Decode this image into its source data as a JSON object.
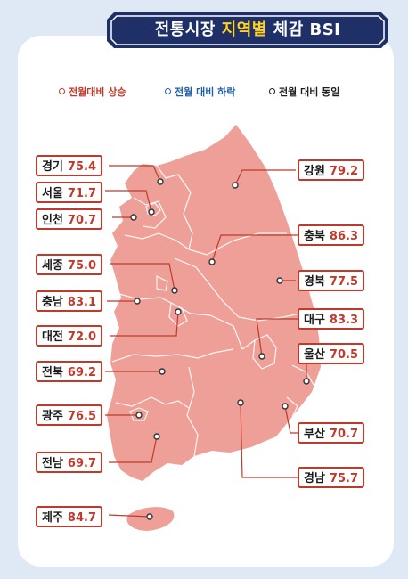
{
  "title": {
    "prefix": "전통시장",
    "highlight": "지역별",
    "suffix": "체감 BSI"
  },
  "legend": [
    {
      "label": "전월대비 상승",
      "color": "#c0392b"
    },
    {
      "label": "전월 대비 하락",
      "color": "#1f5fa8"
    },
    {
      "label": "전월 대비 동일",
      "color": "#1b1b1b"
    }
  ],
  "colors": {
    "map_fill": "#eea098",
    "border": "#c0392b",
    "title_bg": "#1f2f68",
    "highlight": "#ffd21e"
  },
  "regions": {
    "gyeonggi": {
      "name": "경기",
      "value": "75.4"
    },
    "seoul": {
      "name": "서울",
      "value": "71.7"
    },
    "incheon": {
      "name": "인천",
      "value": "70.7"
    },
    "sejong": {
      "name": "세종",
      "value": "75.0"
    },
    "chungnam": {
      "name": "충남",
      "value": "83.1"
    },
    "daejeon": {
      "name": "대전",
      "value": "72.0"
    },
    "jeonbuk": {
      "name": "전북",
      "value": "69.2"
    },
    "gwangju": {
      "name": "광주",
      "value": "76.5"
    },
    "jeonnam": {
      "name": "전남",
      "value": "69.7"
    },
    "jeju": {
      "name": "제주",
      "value": "84.7"
    },
    "gangwon": {
      "name": "강원",
      "value": "79.2"
    },
    "chungbuk": {
      "name": "충북",
      "value": "86.3"
    },
    "gyeongbuk": {
      "name": "경북",
      "value": "77.5"
    },
    "daegu": {
      "name": "대구",
      "value": "83.3"
    },
    "ulsan": {
      "name": "울산",
      "value": "70.5"
    },
    "busan": {
      "name": "부산",
      "value": "70.7"
    },
    "gyeongnam": {
      "name": "경남",
      "value": "75.7"
    }
  }
}
